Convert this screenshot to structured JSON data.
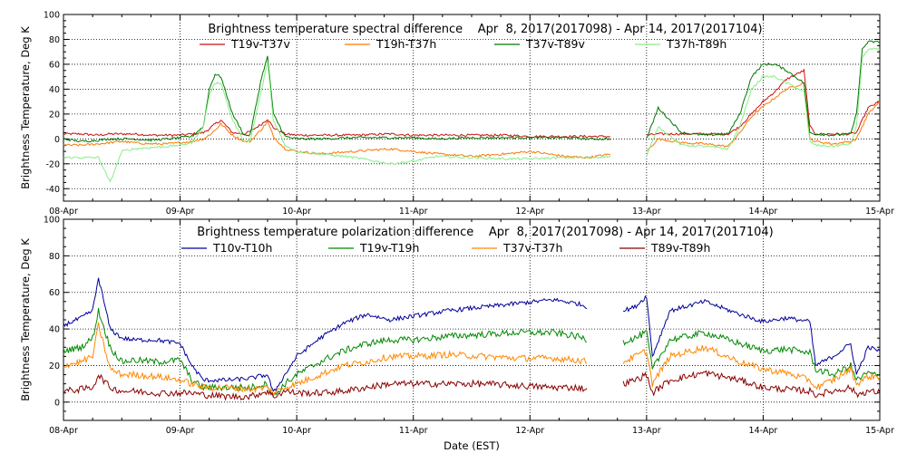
{
  "chart_data": [
    {
      "type": "line",
      "title": "Brightness temperature spectral difference    Apr  8, 2017(2017098) - Apr 14, 2017(2017104)",
      "ylabel": "Brightness Temperature, Deg K",
      "xlabel": "",
      "ylim": [
        -50,
        100
      ],
      "yticks": [
        -40,
        -20,
        0,
        20,
        40,
        60,
        80,
        100
      ],
      "xlim": [
        "2017-04-08",
        "2017-04-15"
      ],
      "x_tick_labels": [
        "08-Apr",
        "09-Apr",
        "10-Apr",
        "11-Apr",
        "12-Apr",
        "13-Apr",
        "14-Apr",
        "15-Apr"
      ],
      "grid": true,
      "legend_placement": "top",
      "x_days": [
        0,
        0.15,
        0.3,
        0.4,
        0.5,
        0.6,
        0.75,
        0.9,
        1.0,
        1.1,
        1.2,
        1.25,
        1.3,
        1.35,
        1.45,
        1.55,
        1.6,
        1.7,
        1.75,
        1.8,
        1.9,
        2.0,
        2.2,
        2.5,
        2.8,
        3.0,
        3.2,
        3.5,
        3.8,
        4.0,
        4.3,
        4.5,
        4.7,
        4.85,
        4.95,
        5.0,
        5.1,
        5.3,
        5.5,
        5.7,
        5.8,
        5.9,
        6.0,
        6.1,
        6.2,
        6.35,
        6.4,
        6.45,
        6.6,
        6.75,
        6.8,
        6.85,
        6.9,
        7.0
      ],
      "series": [
        {
          "name": "T19v-T37v",
          "color": "#cc1111",
          "values": [
            4,
            4,
            3,
            4,
            4,
            4,
            3,
            3,
            3,
            4,
            5,
            8,
            12,
            15,
            5,
            4,
            6,
            12,
            16,
            9,
            4,
            3,
            3,
            3,
            4,
            3,
            3,
            3,
            3,
            2,
            2,
            2,
            2,
            null,
            null,
            3,
            4,
            4,
            4,
            4,
            10,
            20,
            30,
            38,
            48,
            55,
            10,
            4,
            4,
            4,
            5,
            15,
            25,
            30
          ]
        },
        {
          "name": "T19h-T37h",
          "color": "#ff7700",
          "values": [
            -5,
            -5,
            -4,
            -3,
            -2,
            -3,
            -4,
            -4,
            -3,
            -2,
            0,
            3,
            7,
            12,
            3,
            -2,
            -2,
            8,
            14,
            2,
            -8,
            -10,
            -12,
            -10,
            -8,
            -10,
            -12,
            -14,
            -12,
            -10,
            -14,
            -15,
            -12,
            null,
            null,
            -10,
            0,
            -3,
            -4,
            -6,
            5,
            18,
            26,
            33,
            40,
            45,
            0,
            -2,
            -4,
            -2,
            0,
            10,
            20,
            30
          ]
        },
        {
          "name": "T37v-T89v",
          "color": "#007700",
          "values": [
            0,
            -2,
            -1,
            0,
            0,
            0,
            -1,
            0,
            1,
            2,
            10,
            40,
            52,
            50,
            20,
            3,
            3,
            50,
            66,
            20,
            2,
            0,
            0,
            1,
            1,
            1,
            0,
            1,
            1,
            1,
            1,
            0,
            0,
            null,
            null,
            0,
            25,
            5,
            3,
            4,
            20,
            50,
            60,
            60,
            55,
            45,
            5,
            4,
            3,
            4,
            20,
            72,
            78,
            78
          ]
        },
        {
          "name": "T37h-T89h",
          "color": "#88ee88",
          "values": [
            -15,
            -15,
            -15,
            -35,
            -10,
            -8,
            -7,
            -6,
            -5,
            -3,
            10,
            35,
            45,
            45,
            15,
            -2,
            -2,
            40,
            62,
            15,
            -5,
            -10,
            -12,
            -15,
            -20,
            -18,
            -14,
            -15,
            -16,
            -16,
            -15,
            -15,
            -14,
            null,
            null,
            -14,
            10,
            -5,
            -6,
            -8,
            10,
            40,
            50,
            50,
            45,
            38,
            -2,
            -5,
            -6,
            -4,
            10,
            65,
            72,
            72
          ]
        }
      ]
    },
    {
      "type": "line",
      "title": "Brightness temperature polarization difference    Apr  8, 2017(2017098) - Apr 14, 2017(2017104)",
      "ylabel": "Brightness Temperature, Deg K",
      "xlabel": "Date (EST)",
      "ylim": [
        -10,
        100
      ],
      "yticks": [
        0,
        20,
        40,
        60,
        80,
        100
      ],
      "xlim": [
        "2017-04-08",
        "2017-04-15"
      ],
      "x_tick_labels": [
        "08-Apr",
        "09-Apr",
        "10-Apr",
        "11-Apr",
        "12-Apr",
        "13-Apr",
        "14-Apr",
        "15-Apr"
      ],
      "grid": true,
      "legend_placement": "top",
      "x_days": [
        0,
        0.15,
        0.25,
        0.3,
        0.4,
        0.5,
        0.6,
        0.8,
        1.0,
        1.1,
        1.2,
        1.4,
        1.6,
        1.75,
        1.8,
        1.9,
        2.0,
        2.2,
        2.4,
        2.6,
        2.8,
        3.0,
        3.3,
        3.6,
        3.9,
        4.2,
        4.4,
        4.5,
        4.6,
        4.8,
        4.9,
        5.0,
        5.05,
        5.2,
        5.5,
        5.8,
        6.0,
        6.2,
        6.4,
        6.45,
        6.6,
        6.75,
        6.8,
        6.9,
        7.0
      ],
      "series": [
        {
          "name": "T10v-T10h",
          "color": "#000099",
          "values": [
            42,
            46,
            50,
            68,
            40,
            35,
            34,
            34,
            32,
            20,
            12,
            12,
            13,
            15,
            5,
            15,
            25,
            35,
            43,
            48,
            45,
            47,
            50,
            52,
            54,
            56,
            54,
            52,
            null,
            50,
            52,
            58,
            25,
            50,
            55,
            48,
            44,
            46,
            44,
            20,
            25,
            32,
            15,
            30,
            28
          ]
        },
        {
          "name": "T19v-T19h",
          "color": "#008800",
          "values": [
            28,
            30,
            35,
            50,
            30,
            22,
            23,
            22,
            23,
            12,
            8,
            8,
            8,
            10,
            3,
            10,
            15,
            22,
            28,
            32,
            34,
            34,
            36,
            37,
            38,
            38,
            36,
            34,
            null,
            33,
            35,
            38,
            18,
            34,
            38,
            32,
            28,
            29,
            27,
            18,
            15,
            20,
            12,
            16,
            14
          ]
        },
        {
          "name": "T37v-T37h",
          "color": "#ff8800",
          "values": [
            20,
            22,
            25,
            42,
            18,
            15,
            15,
            14,
            12,
            10,
            8,
            8,
            7,
            8,
            5,
            8,
            10,
            15,
            20,
            22,
            25,
            25,
            26,
            25,
            24,
            24,
            23,
            22,
            null,
            22,
            25,
            28,
            10,
            25,
            30,
            22,
            18,
            16,
            12,
            8,
            12,
            18,
            10,
            14,
            14
          ]
        },
        {
          "name": "T89v-T89h",
          "color": "#880000",
          "values": [
            6,
            7,
            8,
            15,
            8,
            6,
            6,
            5,
            5,
            5,
            4,
            3,
            3,
            6,
            3,
            6,
            5,
            5,
            6,
            8,
            10,
            10,
            10,
            10,
            9,
            8,
            8,
            7,
            null,
            10,
            12,
            15,
            5,
            12,
            16,
            12,
            8,
            7,
            6,
            4,
            6,
            8,
            4,
            6,
            5
          ]
        }
      ]
    }
  ]
}
